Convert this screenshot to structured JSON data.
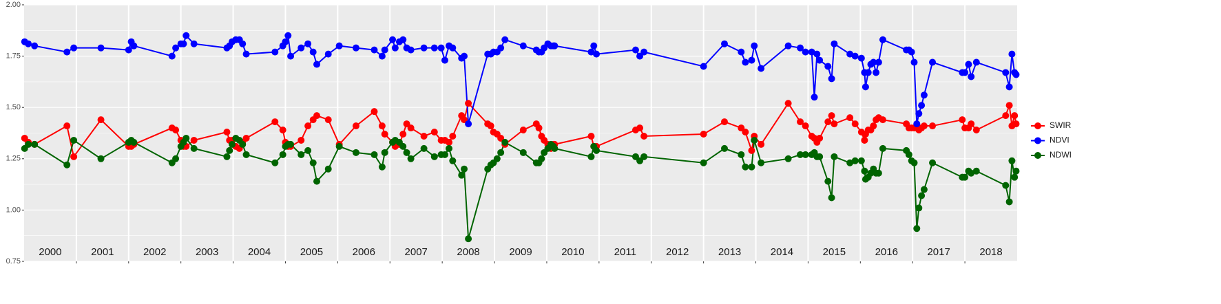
{
  "chart_data": {
    "type": "line",
    "xlim": [
      2000,
      2019
    ],
    "ylim": [
      0.75,
      2.0
    ],
    "yticks": [
      {
        "value": 0.75,
        "label": "0.75"
      },
      {
        "value": 1,
        "label": "1.00"
      },
      {
        "value": 1.25,
        "label": "1.25"
      },
      {
        "value": 1.5,
        "label": "1.50"
      },
      {
        "value": 1.75,
        "label": "1.75"
      },
      {
        "value": 2,
        "label": "2.00"
      }
    ],
    "year_lines": [
      2001,
      2002,
      2003,
      2004,
      2005,
      2006,
      2007,
      2008,
      2009,
      2010,
      2011,
      2012,
      2013,
      2014,
      2015,
      2016,
      2017,
      2018
    ],
    "year_labels": [
      "2000",
      "2001",
      "2002",
      "2003",
      "2004",
      "2005",
      "2006",
      "2007",
      "2008",
      "2009",
      "2010",
      "2011",
      "2012",
      "2013",
      "2014",
      "2015",
      "2016",
      "2017",
      "2018"
    ],
    "grid": true,
    "legend": "right",
    "x": [
      2000.01,
      2000.08,
      2000.2,
      2000.82,
      2000.95,
      2001.47,
      2002.0,
      2002.05,
      2002.1,
      2002.83,
      2002.9,
      2003.0,
      2003.05,
      2003.1,
      2003.25,
      2003.88,
      2003.93,
      2003.98,
      2004.05,
      2004.12,
      2004.18,
      2004.25,
      2004.8,
      2004.95,
      2005.0,
      2005.05,
      2005.1,
      2005.3,
      2005.43,
      2005.53,
      2005.6,
      2005.82,
      2006.03,
      2006.35,
      2006.7,
      2006.85,
      2006.9,
      2007.05,
      2007.1,
      2007.18,
      2007.25,
      2007.32,
      2007.4,
      2007.65,
      2007.85,
      2007.98,
      2008.05,
      2008.13,
      2008.2,
      2008.37,
      2008.42,
      2008.5,
      2008.87,
      2008.93,
      2008.98,
      2009.05,
      2009.12,
      2009.2,
      2009.55,
      2009.8,
      2009.85,
      2009.9,
      2009.95,
      2010.02,
      2010.08,
      2010.13,
      2010.15,
      2010.85,
      2010.9,
      2010.95,
      2011.7,
      2011.78,
      2011.86,
      2013.0,
      2013.4,
      2013.72,
      2013.8,
      2013.92,
      2013.97,
      2014.1,
      2014.62,
      2014.85,
      2014.95,
      2015.07,
      2015.12,
      2015.17,
      2015.22,
      2015.38,
      2015.45,
      2015.5,
      2015.8,
      2015.9,
      2016.02,
      2016.08,
      2016.1,
      2016.15,
      2016.2,
      2016.25,
      2016.3,
      2016.35,
      2016.43,
      2016.88,
      2016.93,
      2016.98,
      2017.03,
      2017.08,
      2017.12,
      2017.17,
      2017.22,
      2017.38,
      2017.95,
      2018.0,
      2018.07,
      2018.12,
      2018.22,
      2018.78,
      2018.85,
      2018.9,
      2018.95,
      2018.98
    ],
    "series": [
      {
        "name": "SWIR",
        "color": "#ff0000",
        "values": [
          1.35,
          1.33,
          1.32,
          1.41,
          1.26,
          1.44,
          1.31,
          1.31,
          1.32,
          1.4,
          1.39,
          1.34,
          1.31,
          1.31,
          1.34,
          1.38,
          1.34,
          1.34,
          1.31,
          1.3,
          1.33,
          1.35,
          1.43,
          1.39,
          1.33,
          1.31,
          1.31,
          1.34,
          1.41,
          1.44,
          1.46,
          1.44,
          1.32,
          1.41,
          1.48,
          1.41,
          1.37,
          1.33,
          1.31,
          1.32,
          1.37,
          1.42,
          1.4,
          1.36,
          1.38,
          1.34,
          1.34,
          1.33,
          1.36,
          1.46,
          1.44,
          1.52,
          1.42,
          1.41,
          1.38,
          1.37,
          1.35,
          1.32,
          1.39,
          1.42,
          1.4,
          1.36,
          1.34,
          1.32,
          1.3,
          1.32,
          1.32,
          1.36,
          1.31,
          1.31,
          1.39,
          1.4,
          1.36,
          1.37,
          1.43,
          1.4,
          1.38,
          1.29,
          1.36,
          1.32,
          1.52,
          1.43,
          1.41,
          1.36,
          1.35,
          1.33,
          1.35,
          1.43,
          1.46,
          1.42,
          1.45,
          1.42,
          1.38,
          1.34,
          1.37,
          1.39,
          1.39,
          1.41,
          1.44,
          1.45,
          1.44,
          1.42,
          1.4,
          1.4,
          1.4,
          1.4,
          1.39,
          1.4,
          1.41,
          1.41,
          1.44,
          1.4,
          1.4,
          1.42,
          1.39,
          1.46,
          1.51,
          1.41,
          1.46,
          1.42
        ]
      },
      {
        "name": "NDVI",
        "color": "#0000ff",
        "values": [
          1.82,
          1.81,
          1.8,
          1.77,
          1.79,
          1.79,
          1.78,
          1.82,
          1.8,
          1.75,
          1.79,
          1.81,
          1.81,
          1.85,
          1.81,
          1.79,
          1.8,
          1.82,
          1.83,
          1.83,
          1.81,
          1.76,
          1.77,
          1.8,
          1.82,
          1.85,
          1.75,
          1.79,
          1.81,
          1.77,
          1.71,
          1.76,
          1.8,
          1.79,
          1.78,
          1.75,
          1.78,
          1.83,
          1.79,
          1.82,
          1.83,
          1.79,
          1.78,
          1.79,
          1.79,
          1.79,
          1.73,
          1.8,
          1.79,
          1.74,
          1.75,
          1.42,
          1.76,
          1.76,
          1.77,
          1.77,
          1.79,
          1.83,
          1.8,
          1.78,
          1.77,
          1.77,
          1.79,
          1.81,
          1.8,
          1.8,
          1.8,
          1.77,
          1.8,
          1.76,
          1.78,
          1.75,
          1.77,
          1.7,
          1.81,
          1.77,
          1.72,
          1.73,
          1.8,
          1.69,
          1.8,
          1.79,
          1.77,
          1.77,
          1.55,
          1.76,
          1.73,
          1.7,
          1.64,
          1.81,
          1.76,
          1.75,
          1.74,
          1.67,
          1.6,
          1.67,
          1.71,
          1.72,
          1.67,
          1.72,
          1.83,
          1.78,
          1.78,
          1.77,
          1.72,
          1.42,
          1.47,
          1.51,
          1.56,
          1.72,
          1.67,
          1.67,
          1.71,
          1.65,
          1.72,
          1.67,
          1.6,
          1.76,
          1.67,
          1.66
        ]
      },
      {
        "name": "NDWI",
        "color": "#006400",
        "values": [
          1.3,
          1.32,
          1.32,
          1.22,
          1.34,
          1.25,
          1.33,
          1.34,
          1.33,
          1.23,
          1.25,
          1.31,
          1.33,
          1.35,
          1.3,
          1.26,
          1.29,
          1.32,
          1.35,
          1.34,
          1.32,
          1.27,
          1.23,
          1.27,
          1.31,
          1.32,
          1.32,
          1.27,
          1.29,
          1.23,
          1.14,
          1.2,
          1.31,
          1.28,
          1.27,
          1.21,
          1.28,
          1.33,
          1.34,
          1.33,
          1.31,
          1.28,
          1.25,
          1.3,
          1.26,
          1.27,
          1.27,
          1.3,
          1.24,
          1.17,
          1.2,
          0.86,
          1.2,
          1.22,
          1.23,
          1.25,
          1.28,
          1.33,
          1.28,
          1.23,
          1.23,
          1.25,
          1.28,
          1.3,
          1.32,
          1.31,
          1.3,
          1.26,
          1.31,
          1.29,
          1.26,
          1.24,
          1.26,
          1.23,
          1.3,
          1.27,
          1.21,
          1.21,
          1.34,
          1.23,
          1.25,
          1.27,
          1.27,
          1.27,
          1.28,
          1.26,
          1.26,
          1.14,
          1.06,
          1.26,
          1.23,
          1.24,
          1.24,
          1.19,
          1.15,
          1.16,
          1.18,
          1.2,
          1.18,
          1.18,
          1.3,
          1.29,
          1.27,
          1.24,
          1.23,
          0.91,
          1.01,
          1.07,
          1.1,
          1.23,
          1.16,
          1.16,
          1.19,
          1.18,
          1.19,
          1.12,
          1.04,
          1.24,
          1.16,
          1.19
        ]
      }
    ]
  }
}
